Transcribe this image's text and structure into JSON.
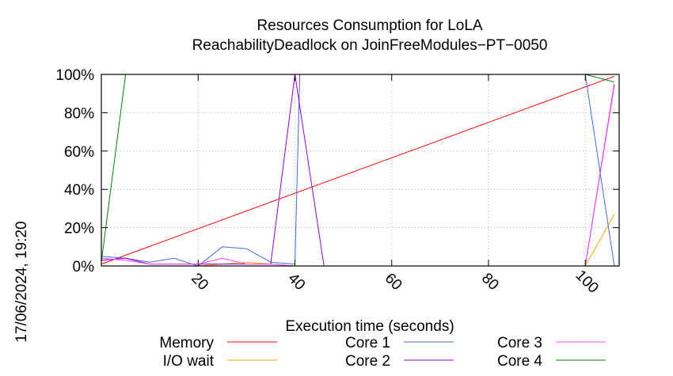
{
  "chart_data": {
    "type": "line",
    "title": "Resources Consumption for LoLA",
    "subtitle": "ReachabilityDeadlock on JoinFreeModules−PT−0050",
    "xlabel": "Execution time (seconds)",
    "ylabel": "",
    "side_label": "17/06/2024, 19:20",
    "xlim": [
      0,
      107
    ],
    "ylim": [
      0,
      100
    ],
    "x_ticks": [
      20,
      40,
      60,
      80,
      100
    ],
    "y_ticks": [
      0,
      20,
      40,
      60,
      80,
      100
    ],
    "y_tick_labels": [
      "0%",
      "20%",
      "40%",
      "60%",
      "80%",
      "100%"
    ],
    "grid": true,
    "legend_position": "bottom",
    "series": [
      {
        "name": "Memory",
        "color": "#ff0000",
        "points": [
          [
            0,
            1
          ],
          [
            106,
            99
          ]
        ]
      },
      {
        "name": "I/O wait",
        "color": "#ffa500",
        "points": [
          [
            0,
            0
          ],
          [
            20,
            0
          ],
          [
            25,
            1
          ],
          [
            30,
            2
          ],
          [
            35,
            1
          ],
          [
            40,
            0
          ],
          [
            100,
            0
          ],
          [
            106,
            27
          ]
        ]
      },
      {
        "name": "Core 1",
        "color": "#4169e1",
        "points": [
          [
            0,
            5
          ],
          [
            5,
            4
          ],
          [
            10,
            2
          ],
          [
            15,
            4
          ],
          [
            20,
            0
          ],
          [
            25,
            10
          ],
          [
            30,
            9
          ],
          [
            35,
            2
          ],
          [
            40,
            1
          ],
          [
            41,
            100
          ],
          [
            45,
            100
          ],
          [
            100,
            100
          ],
          [
            106,
            0
          ]
        ]
      },
      {
        "name": "Core 2",
        "color": "#9400d3",
        "points": [
          [
            0,
            3
          ],
          [
            5,
            4
          ],
          [
            10,
            1
          ],
          [
            15,
            1
          ],
          [
            20,
            1
          ],
          [
            25,
            1
          ],
          [
            30,
            1
          ],
          [
            35,
            1
          ],
          [
            40,
            100
          ],
          [
            46,
            0
          ],
          [
            100,
            0
          ],
          [
            106,
            95
          ]
        ]
      },
      {
        "name": "Core 3",
        "color": "#ff44ff",
        "points": [
          [
            0,
            4
          ],
          [
            5,
            3
          ],
          [
            10,
            1
          ],
          [
            15,
            1
          ],
          [
            20,
            1
          ],
          [
            25,
            4
          ],
          [
            30,
            1
          ],
          [
            35,
            1
          ],
          [
            40,
            0
          ],
          [
            100,
            0
          ],
          [
            106,
            94
          ]
        ]
      },
      {
        "name": "Core 4",
        "color": "#007f00",
        "points": [
          [
            0,
            2
          ],
          [
            5,
            100
          ],
          [
            100,
            100
          ],
          [
            106,
            96
          ]
        ]
      }
    ]
  }
}
